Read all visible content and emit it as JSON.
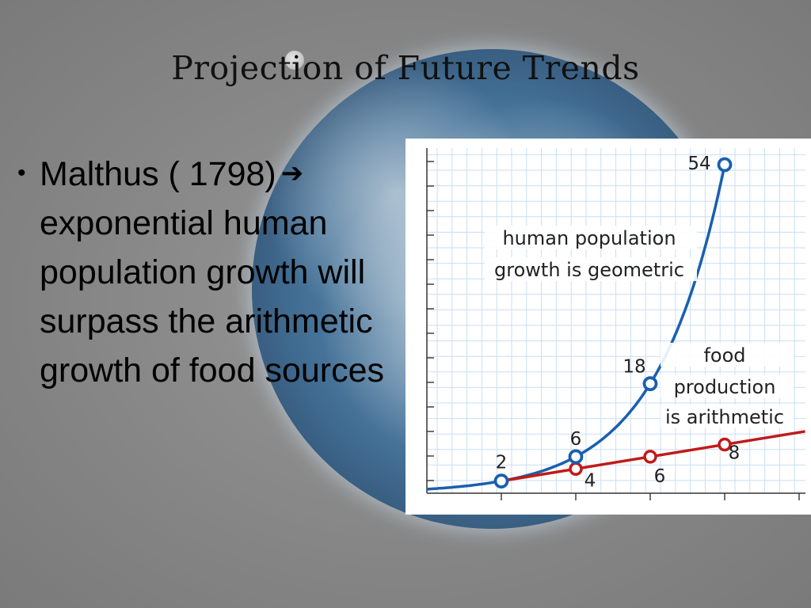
{
  "slide": {
    "title": "Projection of Future Trends",
    "bullet": {
      "line1": "Malthus ( 1798)",
      "rest": "exponential human population growth will surpass the arithmetic growth of food sources",
      "arrow_icon": "bold-right-arrow-icon"
    }
  },
  "chart_data": {
    "type": "line",
    "xlim": [
      0,
      4
    ],
    "ylim": [
      0,
      54
    ],
    "grid": true,
    "series": [
      {
        "key": "population",
        "color": "#1a5fae",
        "points": [
          [
            1,
            2
          ],
          [
            2,
            6
          ],
          [
            3,
            18
          ],
          [
            4,
            54
          ]
        ],
        "labels": [
          "2",
          "6",
          "18",
          "54"
        ]
      },
      {
        "key": "food",
        "color": "#c01a1a",
        "points": [
          [
            1,
            2
          ],
          [
            2,
            4
          ],
          [
            3,
            6
          ],
          [
            4,
            8
          ]
        ],
        "labels": [
          "4",
          "6",
          "8"
        ]
      }
    ],
    "annotations": {
      "population": [
        "human population",
        "growth is geometric"
      ],
      "food": [
        "food",
        "production",
        "is arithmetic"
      ]
    }
  }
}
